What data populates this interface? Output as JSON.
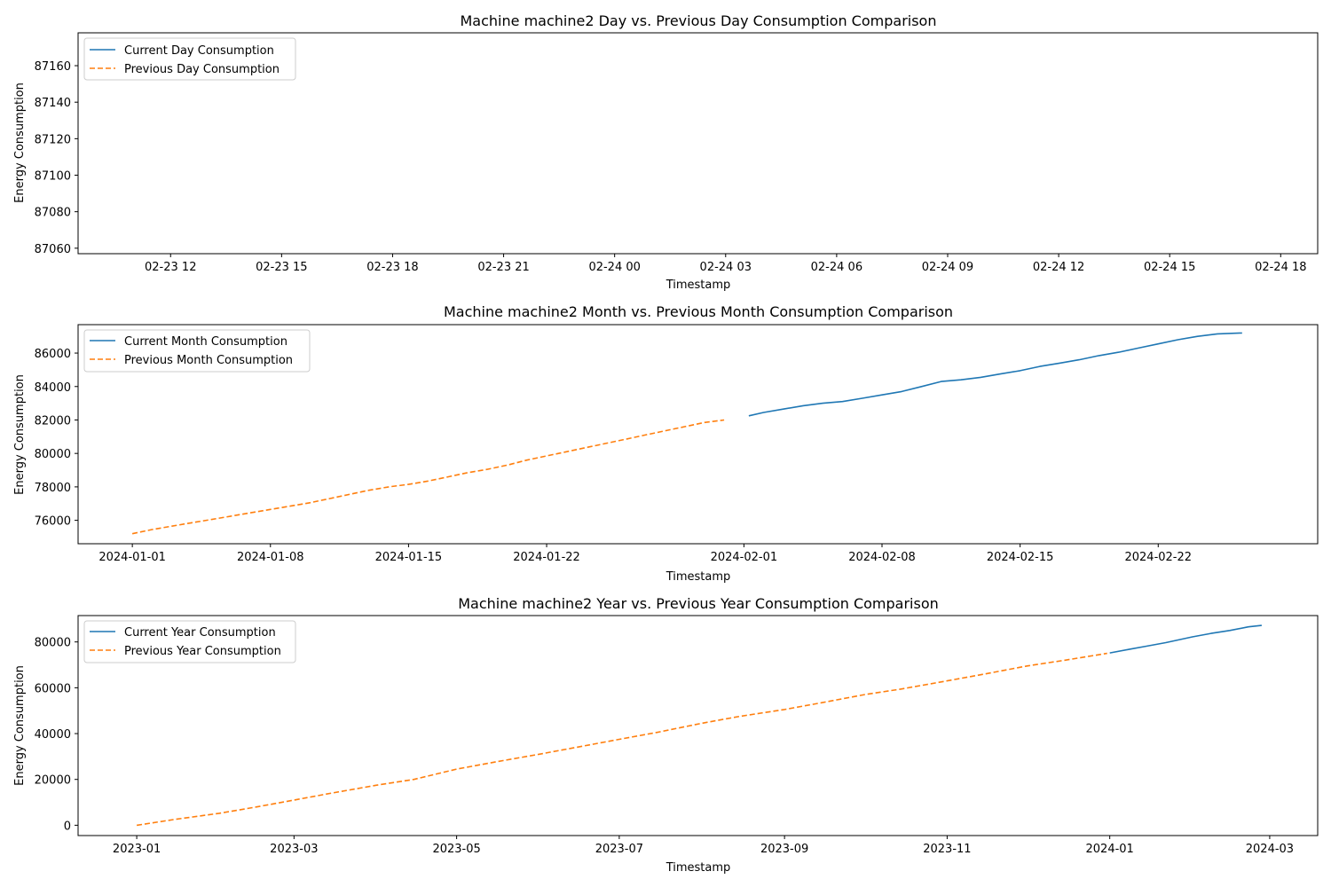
{
  "colors": {
    "current": "#1f77b4",
    "previous": "#ff7f0e",
    "axes": "#000000",
    "background": "#ffffff"
  },
  "chart_data": [
    {
      "type": "line",
      "title": "Machine machine2 Day vs. Previous Day Consumption Comparison",
      "xlabel": "Timestamp",
      "ylabel": "Energy Consumption",
      "x_type": "datetime",
      "xlim": [
        "2024-02-23 09:30",
        "2024-02-24 19:00"
      ],
      "ylim": [
        87057,
        87178
      ],
      "x_ticks": [
        {
          "value": "2024-02-23 12:00",
          "label": "02-23 12"
        },
        {
          "value": "2024-02-23 15:00",
          "label": "02-23 15"
        },
        {
          "value": "2024-02-23 18:00",
          "label": "02-23 18"
        },
        {
          "value": "2024-02-23 21:00",
          "label": "02-23 21"
        },
        {
          "value": "2024-02-24 00:00",
          "label": "02-24 00"
        },
        {
          "value": "2024-02-24 03:00",
          "label": "02-24 03"
        },
        {
          "value": "2024-02-24 06:00",
          "label": "02-24 06"
        },
        {
          "value": "2024-02-24 09:00",
          "label": "02-24 09"
        },
        {
          "value": "2024-02-24 12:00",
          "label": "02-24 12"
        },
        {
          "value": "2024-02-24 15:00",
          "label": "02-24 15"
        },
        {
          "value": "2024-02-24 18:00",
          "label": "02-24 18"
        }
      ],
      "y_ticks": [
        {
          "value": 87060,
          "label": "87060"
        },
        {
          "value": 87080,
          "label": "87080"
        },
        {
          "value": 87100,
          "label": "87100"
        },
        {
          "value": 87120,
          "label": "87120"
        },
        {
          "value": 87140,
          "label": "87140"
        },
        {
          "value": 87160,
          "label": "87160"
        }
      ],
      "grid": false,
      "legend": "upper-left",
      "series": [
        {
          "name": "Current Day Consumption",
          "style": "solid",
          "color_key": "current",
          "points": []
        },
        {
          "name": "Previous Day Consumption",
          "style": "dashed",
          "color_key": "previous",
          "points": []
        }
      ]
    },
    {
      "type": "line",
      "title": "Machine machine2 Month vs. Previous Month Consumption Comparison",
      "xlabel": "Timestamp",
      "ylabel": "Energy Consumption",
      "x_type": "datetime",
      "xlim": [
        "2023-12-29 06:00",
        "2024-03-01 02:00"
      ],
      "ylim": [
        74600,
        87700
      ],
      "x_ticks": [
        {
          "value": "2024-01-01",
          "label": "2024-01-01"
        },
        {
          "value": "2024-01-08",
          "label": "2024-01-08"
        },
        {
          "value": "2024-01-15",
          "label": "2024-01-15"
        },
        {
          "value": "2024-01-22",
          "label": "2024-01-22"
        },
        {
          "value": "2024-02-01",
          "label": "2024-02-01"
        },
        {
          "value": "2024-02-08",
          "label": "2024-02-08"
        },
        {
          "value": "2024-02-15",
          "label": "2024-02-15"
        },
        {
          "value": "2024-02-22",
          "label": "2024-02-22"
        }
      ],
      "y_ticks": [
        {
          "value": 76000,
          "label": "76000"
        },
        {
          "value": 78000,
          "label": "78000"
        },
        {
          "value": 80000,
          "label": "80000"
        },
        {
          "value": 82000,
          "label": "82000"
        },
        {
          "value": 84000,
          "label": "84000"
        },
        {
          "value": 86000,
          "label": "86000"
        }
      ],
      "grid": false,
      "legend": "upper-left",
      "series": [
        {
          "name": "Current Month Consumption",
          "style": "solid",
          "color_key": "current",
          "points": [
            [
              "2024-02-01 06:00",
              82250
            ],
            [
              "2024-02-02",
              82450
            ],
            [
              "2024-02-03",
              82650
            ],
            [
              "2024-02-04",
              82850
            ],
            [
              "2024-02-05",
              83000
            ],
            [
              "2024-02-06",
              83100
            ],
            [
              "2024-02-07",
              83300
            ],
            [
              "2024-02-08",
              83500
            ],
            [
              "2024-02-09",
              83700
            ],
            [
              "2024-02-10",
              84000
            ],
            [
              "2024-02-11",
              84300
            ],
            [
              "2024-02-12",
              84400
            ],
            [
              "2024-02-13",
              84550
            ],
            [
              "2024-02-14",
              84750
            ],
            [
              "2024-02-15",
              84950
            ],
            [
              "2024-02-16",
              85200
            ],
            [
              "2024-02-17",
              85400
            ],
            [
              "2024-02-18",
              85600
            ],
            [
              "2024-02-19",
              85850
            ],
            [
              "2024-02-20",
              86050
            ],
            [
              "2024-02-21",
              86300
            ],
            [
              "2024-02-22",
              86550
            ],
            [
              "2024-02-23",
              86800
            ],
            [
              "2024-02-24",
              87000
            ],
            [
              "2024-02-25",
              87150
            ],
            [
              "2024-02-26 06:00",
              87200
            ]
          ]
        },
        {
          "name": "Previous Month Consumption",
          "style": "dashed",
          "color_key": "previous",
          "points": [
            [
              "2024-01-01",
              75200
            ],
            [
              "2024-01-02",
              75450
            ],
            [
              "2024-01-03",
              75650
            ],
            [
              "2024-01-04",
              75850
            ],
            [
              "2024-01-05",
              76050
            ],
            [
              "2024-01-06",
              76250
            ],
            [
              "2024-01-07",
              76450
            ],
            [
              "2024-01-08",
              76650
            ],
            [
              "2024-01-09",
              76850
            ],
            [
              "2024-01-10",
              77050
            ],
            [
              "2024-01-11",
              77300
            ],
            [
              "2024-01-12",
              77550
            ],
            [
              "2024-01-13",
              77800
            ],
            [
              "2024-01-14",
              78000
            ],
            [
              "2024-01-15",
              78150
            ],
            [
              "2024-01-16",
              78350
            ],
            [
              "2024-01-17",
              78600
            ],
            [
              "2024-01-18",
              78850
            ],
            [
              "2024-01-19",
              79050
            ],
            [
              "2024-01-20",
              79300
            ],
            [
              "2024-01-21",
              79600
            ],
            [
              "2024-01-22",
              79850
            ],
            [
              "2024-01-23",
              80100
            ],
            [
              "2024-01-24",
              80350
            ],
            [
              "2024-01-25",
              80600
            ],
            [
              "2024-01-26",
              80850
            ],
            [
              "2024-01-27",
              81100
            ],
            [
              "2024-01-28",
              81350
            ],
            [
              "2024-01-29",
              81600
            ],
            [
              "2024-01-30",
              81850
            ],
            [
              "2024-01-31",
              82000
            ]
          ]
        }
      ]
    },
    {
      "type": "line",
      "title": "Machine machine2 Year vs. Previous Year Consumption Comparison",
      "xlabel": "Timestamp",
      "ylabel": "Energy Consumption",
      "x_type": "datetime",
      "xlim": [
        "2022-12-10",
        "2024-03-19"
      ],
      "ylim": [
        -4500,
        91500
      ],
      "x_ticks": [
        {
          "value": "2023-01-01",
          "label": "2023-01"
        },
        {
          "value": "2023-03-01",
          "label": "2023-03"
        },
        {
          "value": "2023-05-01",
          "label": "2023-05"
        },
        {
          "value": "2023-07-01",
          "label": "2023-07"
        },
        {
          "value": "2023-09-01",
          "label": "2023-09"
        },
        {
          "value": "2023-11-01",
          "label": "2023-11"
        },
        {
          "value": "2024-01-01",
          "label": "2024-01"
        },
        {
          "value": "2024-03-01",
          "label": "2024-03"
        }
      ],
      "y_ticks": [
        {
          "value": 0,
          "label": "0"
        },
        {
          "value": 20000,
          "label": "20000"
        },
        {
          "value": 40000,
          "label": "40000"
        },
        {
          "value": 60000,
          "label": "60000"
        },
        {
          "value": 80000,
          "label": "80000"
        }
      ],
      "grid": false,
      "legend": "upper-left",
      "series": [
        {
          "name": "Current Year Consumption",
          "style": "solid",
          "color_key": "current",
          "points": [
            [
              "2024-01-01",
              75200
            ],
            [
              "2024-01-08",
              76700
            ],
            [
              "2024-01-15",
              78200
            ],
            [
              "2024-01-22",
              79700
            ],
            [
              "2024-02-01",
              82200
            ],
            [
              "2024-02-08",
              83700
            ],
            [
              "2024-02-15",
              85000
            ],
            [
              "2024-02-22",
              86600
            ],
            [
              "2024-02-27",
              87200
            ]
          ]
        },
        {
          "name": "Previous Year Consumption",
          "style": "dashed",
          "color_key": "previous",
          "points": [
            [
              "2023-01-01",
              0
            ],
            [
              "2023-01-15",
              2500
            ],
            [
              "2023-02-01",
              5200
            ],
            [
              "2023-02-15",
              8000
            ],
            [
              "2023-03-01",
              11000
            ],
            [
              "2023-03-15",
              14000
            ],
            [
              "2023-04-01",
              17500
            ],
            [
              "2023-04-15",
              20000
            ],
            [
              "2023-05-01",
              24500
            ],
            [
              "2023-05-15",
              27500
            ],
            [
              "2023-06-01",
              31000
            ],
            [
              "2023-06-15",
              34000
            ],
            [
              "2023-07-01",
              37500
            ],
            [
              "2023-07-15",
              40500
            ],
            [
              "2023-08-01",
              44500
            ],
            [
              "2023-08-15",
              47500
            ],
            [
              "2023-09-01",
              50500
            ],
            [
              "2023-09-15",
              53500
            ],
            [
              "2023-10-01",
              57000
            ],
            [
              "2023-10-15",
              59500
            ],
            [
              "2023-11-01",
              63000
            ],
            [
              "2023-11-15",
              66000
            ],
            [
              "2023-12-01",
              69500
            ],
            [
              "2023-12-15",
              72000
            ],
            [
              "2023-12-31",
              75000
            ]
          ]
        }
      ]
    }
  ]
}
